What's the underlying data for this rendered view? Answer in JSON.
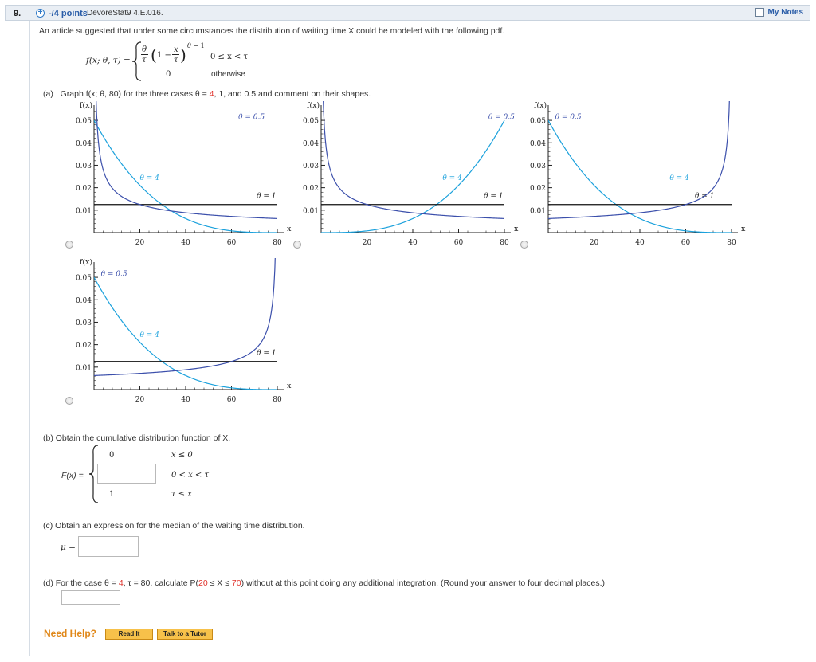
{
  "header": {
    "question_number": "9.",
    "points": "-/4 points",
    "source": "DevoreStat9 4.E.016.",
    "my_notes": "My Notes"
  },
  "question": {
    "intro": "An article suggested that under some circumstances the distribution of waiting time X could be modeled with the following pdf.",
    "pdf_lhs": "f(x; θ, τ) =",
    "pdf_case1_cond": "0 ≤ x < τ",
    "pdf_case2_value": "0",
    "pdf_case2_cond": "otherwise"
  },
  "part_a": {
    "label": "(a)",
    "text_prefix": "Graph f(x; θ, 80) for the three cases θ =",
    "theta_4": "4",
    "text_mid": ", 1, and 0.5 and comment on their shapes."
  },
  "chart_data": [
    {
      "type": "line",
      "ylabel": "f(x)",
      "xlabel": "x",
      "xlim": [
        0,
        80
      ],
      "ylim": [
        0,
        0.055
      ],
      "x_ticks": [
        "20",
        "40",
        "60",
        "80"
      ],
      "y_ticks": [
        "0.01",
        "0.02",
        "0.03",
        "0.04",
        "0.05"
      ],
      "series": [
        {
          "name": "θ = 4",
          "theta": 4,
          "color": "#1ba1dc",
          "label_pos": [
            20,
            0.0235
          ]
        },
        {
          "name": "θ = 1",
          "theta": 1,
          "color": "#111111",
          "label_pos": [
            71,
            0.0155
          ]
        },
        {
          "name": "θ = 0.5",
          "theta": 0.5,
          "color": "#3b4fab",
          "label_pos": [
            63,
            0.0505
          ],
          "flip": true
        }
      ]
    },
    {
      "type": "line",
      "ylabel": "f(x)",
      "xlabel": "x",
      "xlim": [
        0,
        80
      ],
      "ylim": [
        0,
        0.055
      ],
      "x_ticks": [
        "20",
        "40",
        "60",
        "80"
      ],
      "y_ticks": [
        "0.01",
        "0.02",
        "0.03",
        "0.04",
        "0.05"
      ],
      "series": [
        {
          "name": "θ = 4",
          "theta": 4,
          "color": "#1ba1dc",
          "label_pos": [
            53,
            0.0235
          ],
          "flip": true
        },
        {
          "name": "θ = 1",
          "theta": 1,
          "color": "#111111",
          "label_pos": [
            71,
            0.0155
          ]
        },
        {
          "name": "θ = 0.5",
          "theta": 0.5,
          "color": "#3b4fab",
          "label_pos": [
            73,
            0.0505
          ],
          "flip": true
        }
      ]
    },
    {
      "type": "line",
      "ylabel": "f(x)",
      "xlabel": "x",
      "xlim": [
        0,
        80
      ],
      "ylim": [
        0,
        0.055
      ],
      "x_ticks": [
        "20",
        "40",
        "60",
        "80"
      ],
      "y_ticks": [
        "0.01",
        "0.02",
        "0.03",
        "0.04",
        "0.05"
      ],
      "series": [
        {
          "name": "θ = 4",
          "theta": 4,
          "color": "#1ba1dc",
          "label_pos": [
            53,
            0.0235
          ]
        },
        {
          "name": "θ = 1",
          "theta": 1,
          "color": "#111111",
          "label_pos": [
            64,
            0.0155
          ]
        },
        {
          "name": "θ = 0.5",
          "theta": 0.5,
          "color": "#3b4fab",
          "label_pos": [
            3,
            0.0505
          ]
        }
      ]
    },
    {
      "type": "line",
      "ylabel": "f(x)",
      "xlabel": "x",
      "xlim": [
        0,
        80
      ],
      "ylim": [
        0,
        0.055
      ],
      "x_ticks": [
        "20",
        "40",
        "60",
        "80"
      ],
      "y_ticks": [
        "0.01",
        "0.02",
        "0.03",
        "0.04",
        "0.05"
      ],
      "series": [
        {
          "name": "θ = 4",
          "theta": 4,
          "color": "#1ba1dc",
          "label_pos": [
            20,
            0.0235
          ]
        },
        {
          "name": "θ = 1",
          "theta": 1,
          "color": "#111111",
          "label_pos": [
            71,
            0.0155
          ]
        },
        {
          "name": "θ = 0.5",
          "theta": 0.5,
          "color": "#3b4fab",
          "label_pos": [
            3,
            0.0505
          ]
        }
      ]
    }
  ],
  "part_b": {
    "text": "(b)   Obtain the cumulative distribution function of X.",
    "lhs": "F(x) =",
    "case1_value": "0",
    "case1_cond": "x ≤ 0",
    "case2_cond": "0 < x < τ",
    "case3_value": "1",
    "case3_cond": "τ ≤ x",
    "input_value": ""
  },
  "part_c": {
    "text": "(c)   Obtain an expression for the median of the waiting time distribution.",
    "lhs": "μ =",
    "input_value": ""
  },
  "part_d": {
    "text_prefix": "(d)   For the case θ =",
    "theta": "4",
    "text_mid": ", τ = 80, calculate P(",
    "low": "20",
    "text_mid2": " ≤ X ≤ ",
    "high": "70",
    "text_suffix": ") without at this point doing any additional integration. (Round your answer to four decimal places.)",
    "input_value": ""
  },
  "help": {
    "need_help": "Need Help?",
    "read_it": "Read It",
    "talk_to_tutor": "Talk to a Tutor"
  }
}
